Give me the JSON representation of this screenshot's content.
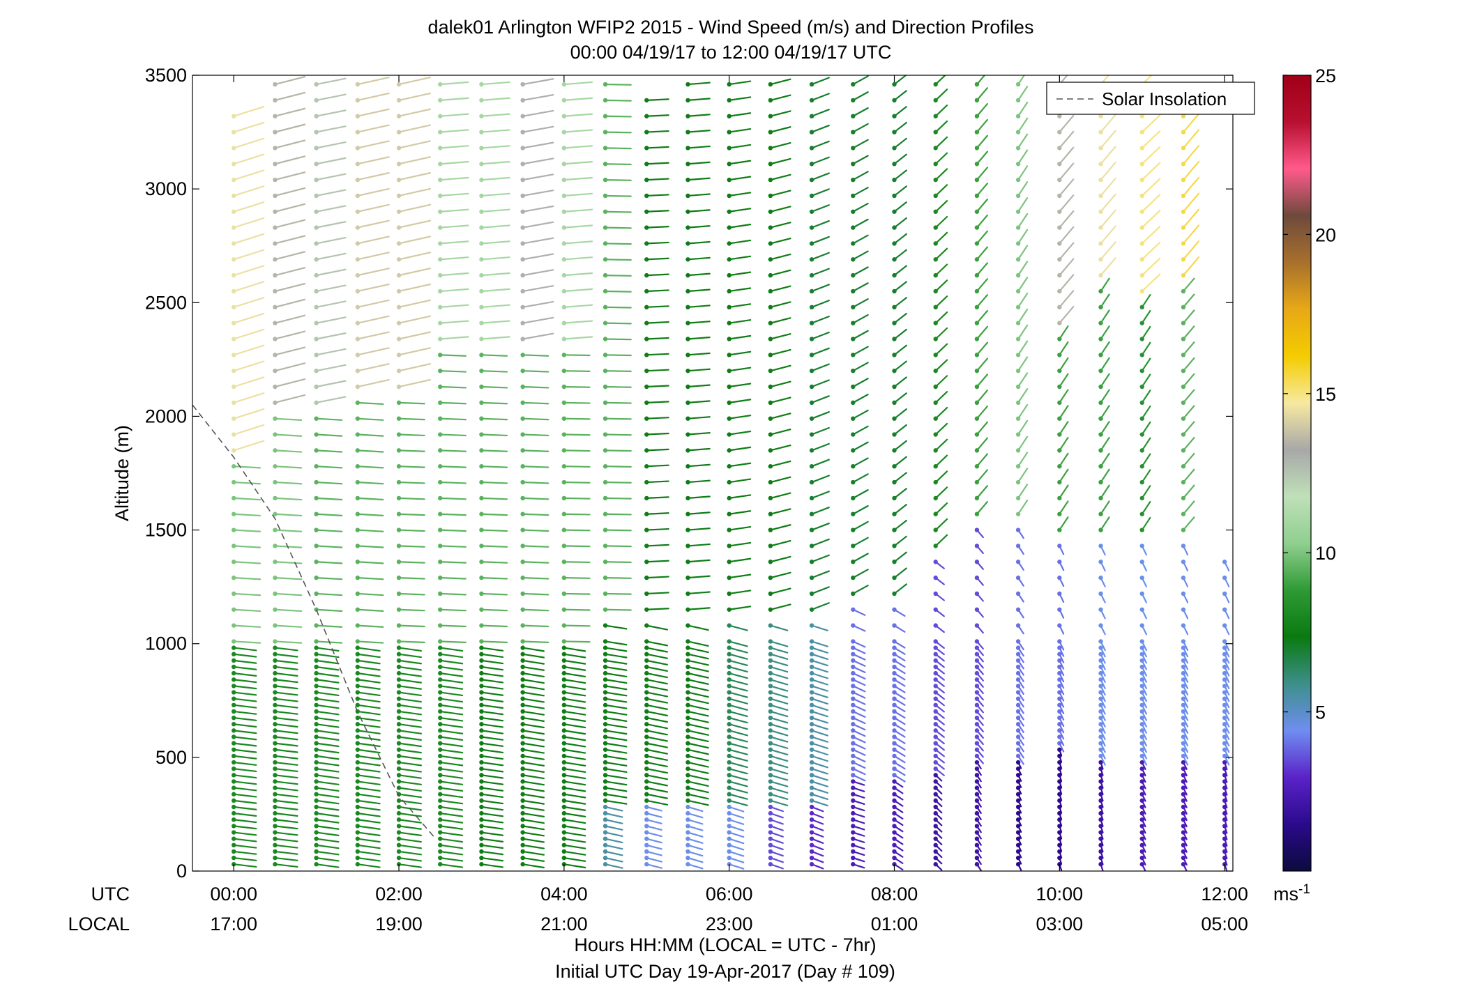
{
  "chart_data": {
    "type": "vector-profile",
    "title": "dalek01 Arlington WFIP2 2015 - Wind Speed (m/s) and Direction Profiles",
    "subtitle": "00:00 04/19/17 to 12:00 04/19/17  UTC",
    "ylabel": "Altitude (m)",
    "xlabel": "Hours HH:MM  (LOCAL = UTC - 7hr)",
    "xlabel2": "Initial UTC Day 19-Apr-2017 (Day # 109)",
    "utc_row_label": "UTC",
    "local_row_label": "LOCAL",
    "xlim": [
      -0.5,
      12.1
    ],
    "ylim": [
      0,
      3500
    ],
    "y_ticks": [
      0,
      500,
      1000,
      1500,
      2000,
      2500,
      3000,
      3500
    ],
    "y_tick_labels": [
      "0",
      "500",
      "1000",
      "1500",
      "2000",
      "2500",
      "3000",
      "3500"
    ],
    "x_ticks": [
      0,
      2,
      4,
      6,
      8,
      10,
      12
    ],
    "x_tick_labels_utc": [
      "00:00",
      "02:00",
      "04:00",
      "06:00",
      "08:00",
      "10:00",
      "12:00"
    ],
    "x_tick_labels_local": [
      "17:00",
      "19:00",
      "21:00",
      "23:00",
      "01:00",
      "03:00",
      "05:00"
    ],
    "legend": {
      "entries": [
        "Solar Insolation"
      ],
      "position": "top-right"
    },
    "colorbar": {
      "range": [
        0,
        25
      ],
      "ticks": [
        5,
        10,
        15,
        20,
        25
      ],
      "tick_labels": [
        "5",
        "10",
        "15",
        "20",
        "25"
      ],
      "unit_label": "ms",
      "unit_exponent": "-1",
      "colors": [
        "#0b0b3d",
        "#2b0a8c",
        "#5a22c8",
        "#6f8ef0",
        "#3d8f8a",
        "#0a7a10",
        "#2f9a35",
        "#8fcf8f",
        "#bfe0b8",
        "#a8a8a8",
        "#f7e9a0",
        "#f4cc00",
        "#e8a817",
        "#a8702c",
        "#6e4a3c",
        "#ff5a8c",
        "#b81030",
        "#a00018"
      ]
    },
    "profile_times_hours": [
      0,
      0.5,
      1,
      1.5,
      2,
      2.5,
      3,
      3.5,
      4,
      4.5,
      5,
      5.5,
      6,
      6.5,
      7,
      7.5,
      8,
      8.5,
      9,
      9.5,
      10,
      10.5,
      11,
      11.5,
      12
    ],
    "profiles": [
      {
        "t": 0,
        "top": 3320,
        "regimes": [
          {
            "z": [
              0,
              1000
            ],
            "speed": 8,
            "dir": 282
          },
          {
            "z": [
              1000,
              1800
            ],
            "speed": 10,
            "dir": 276
          },
          {
            "z": [
              1800,
              3320
            ],
            "speed": 14.5,
            "dir": 240
          }
        ]
      },
      {
        "t": 0.5,
        "top": 3460,
        "regimes": [
          {
            "z": [
              0,
              1000
            ],
            "speed": 8,
            "dir": 282
          },
          {
            "z": [
              1000,
              2000
            ],
            "speed": 10,
            "dir": 276
          },
          {
            "z": [
              2000,
              3460
            ],
            "speed": 13.5,
            "dir": 245
          }
        ]
      },
      {
        "t": 1,
        "top": 3470,
        "regimes": [
          {
            "z": [
              0,
              1000
            ],
            "speed": 8,
            "dir": 284
          },
          {
            "z": [
              1000,
              2050
            ],
            "speed": 9.5,
            "dir": 276
          },
          {
            "z": [
              2050,
              3470
            ],
            "speed": 12.5,
            "dir": 250
          }
        ]
      },
      {
        "t": 1.5,
        "top": 3470,
        "regimes": [
          {
            "z": [
              0,
              1000
            ],
            "speed": 8,
            "dir": 284
          },
          {
            "z": [
              1000,
              2100
            ],
            "speed": 9.5,
            "dir": 276
          },
          {
            "z": [
              2100,
              3470
            ],
            "speed": 14,
            "dir": 248
          }
        ]
      },
      {
        "t": 2,
        "top": 3470,
        "regimes": [
          {
            "z": [
              0,
              1000
            ],
            "speed": 8,
            "dir": 284
          },
          {
            "z": [
              1000,
              2100
            ],
            "speed": 9.5,
            "dir": 274
          },
          {
            "z": [
              2100,
              3470
            ],
            "speed": 14,
            "dir": 248
          }
        ]
      },
      {
        "t": 2.5,
        "top": 3470,
        "regimes": [
          {
            "z": [
              0,
              1000
            ],
            "speed": 8,
            "dir": 284
          },
          {
            "z": [
              1000,
              2300
            ],
            "speed": 9.5,
            "dir": 274
          },
          {
            "z": [
              2300,
              3470
            ],
            "speed": 11,
            "dir": 262
          }
        ]
      },
      {
        "t": 3,
        "top": 3470,
        "regimes": [
          {
            "z": [
              0,
              1000
            ],
            "speed": 7.5,
            "dir": 284
          },
          {
            "z": [
              1000,
              2300
            ],
            "speed": 9.5,
            "dir": 274
          },
          {
            "z": [
              2300,
              3470
            ],
            "speed": 11,
            "dir": 262
          }
        ]
      },
      {
        "t": 3.5,
        "top": 3470,
        "regimes": [
          {
            "z": [
              0,
              1000
            ],
            "speed": 7.5,
            "dir": 286
          },
          {
            "z": [
              1000,
              2300
            ],
            "speed": 9.5,
            "dir": 274
          },
          {
            "z": [
              2300,
              3470
            ],
            "speed": 13,
            "dir": 252
          }
        ]
      },
      {
        "t": 4,
        "top": 3470,
        "regimes": [
          {
            "z": [
              0,
              1000
            ],
            "speed": 7.5,
            "dir": 286
          },
          {
            "z": [
              1000,
              2300
            ],
            "speed": 9.5,
            "dir": 272
          },
          {
            "z": [
              2300,
              3470
            ],
            "speed": 11,
            "dir": 262
          }
        ]
      },
      {
        "t": 4.5,
        "top": 3470,
        "regimes": [
          {
            "z": [
              0,
              300
            ],
            "speed": 5.5,
            "dir": 292
          },
          {
            "z": [
              300,
              1100
            ],
            "speed": 7.5,
            "dir": 286
          },
          {
            "z": [
              1100,
              3470
            ],
            "speed": 9.5,
            "dir": 272
          }
        ]
      },
      {
        "t": 5,
        "top": 3450,
        "regimes": [
          {
            "z": [
              0,
              300
            ],
            "speed": 4.5,
            "dir": 295
          },
          {
            "z": [
              300,
              1100
            ],
            "speed": 7.5,
            "dir": 290
          },
          {
            "z": [
              1100,
              3450
            ],
            "speed": 7.5,
            "dir": 265
          }
        ]
      },
      {
        "t": 5.5,
        "top": 3470,
        "regimes": [
          {
            "z": [
              0,
              300
            ],
            "speed": 4.5,
            "dir": 298
          },
          {
            "z": [
              300,
              1100
            ],
            "speed": 7.5,
            "dir": 292
          },
          {
            "z": [
              1100,
              3470
            ],
            "speed": 7.5,
            "dir": 262
          }
        ]
      },
      {
        "t": 6,
        "top": 3470,
        "regimes": [
          {
            "z": [
              0,
              300
            ],
            "speed": 4.5,
            "dir": 300
          },
          {
            "z": [
              300,
              1100
            ],
            "speed": 6.5,
            "dir": 296
          },
          {
            "z": [
              1100,
              3470
            ],
            "speed": 7.5,
            "dir": 255
          }
        ]
      },
      {
        "t": 6.5,
        "top": 3470,
        "regimes": [
          {
            "z": [
              0,
              300
            ],
            "speed": 3.5,
            "dir": 302
          },
          {
            "z": [
              300,
              1100
            ],
            "speed": 6,
            "dir": 298
          },
          {
            "z": [
              1100,
              3470
            ],
            "speed": 7.5,
            "dir": 245
          }
        ]
      },
      {
        "t": 7,
        "top": 3480,
        "regimes": [
          {
            "z": [
              0,
              300
            ],
            "speed": 3,
            "dir": 305
          },
          {
            "z": [
              300,
              1100
            ],
            "speed": 5.5,
            "dir": 300
          },
          {
            "z": [
              1100,
              3480
            ],
            "speed": 7,
            "dir": 235
          }
        ]
      },
      {
        "t": 7.5,
        "top": 3480,
        "regimes": [
          {
            "z": [
              0,
              400
            ],
            "speed": 2.5,
            "dir": 300
          },
          {
            "z": [
              400,
              1200
            ],
            "speed": 4,
            "dir": 310
          },
          {
            "z": [
              1200,
              3480
            ],
            "speed": 7,
            "dir": 225
          }
        ]
      },
      {
        "t": 8,
        "top": 3480,
        "regimes": [
          {
            "z": [
              0,
              400
            ],
            "speed": 2.5,
            "dir": 320
          },
          {
            "z": [
              400,
              1200
            ],
            "speed": 4,
            "dir": 318
          },
          {
            "z": [
              1200,
              3480
            ],
            "speed": 7,
            "dir": 215
          }
        ]
      },
      {
        "t": 8.5,
        "top": 3480,
        "regimes": [
          {
            "z": [
              0,
              450
            ],
            "speed": 2,
            "dir": 330
          },
          {
            "z": [
              450,
              1400
            ],
            "speed": 3.5,
            "dir": 325
          },
          {
            "z": [
              1400,
              3480
            ],
            "speed": 8,
            "dir": 210
          }
        ]
      },
      {
        "t": 9,
        "top": 3480,
        "regimes": [
          {
            "z": [
              0,
              500
            ],
            "speed": 2,
            "dir": 340
          },
          {
            "z": [
              500,
              1550
            ],
            "speed": 3.5,
            "dir": 335
          },
          {
            "z": [
              1550,
              3480
            ],
            "speed": 9,
            "dir": 205
          }
        ]
      },
      {
        "t": 9.5,
        "top": 3480,
        "regimes": [
          {
            "z": [
              0,
              500
            ],
            "speed": 1.5,
            "dir": 345
          },
          {
            "z": [
              500,
              1550
            ],
            "speed": 4,
            "dir": 340
          },
          {
            "z": [
              1550,
              3480
            ],
            "speed": 10,
            "dir": 200
          }
        ]
      },
      {
        "t": 10,
        "top": 3470,
        "regimes": [
          {
            "z": [
              0,
              550
            ],
            "speed": 1.5,
            "dir": 350
          },
          {
            "z": [
              550,
              1500
            ],
            "speed": 4,
            "dir": 345
          },
          {
            "z": [
              1500,
              2400
            ],
            "speed": 9,
            "dir": 200
          },
          {
            "z": [
              2400,
              3470
            ],
            "speed": 13.5,
            "dir": 205
          }
        ]
      },
      {
        "t": 10.5,
        "top": 3460,
        "regimes": [
          {
            "z": [
              0,
              500
            ],
            "speed": 2,
            "dir": 350
          },
          {
            "z": [
              500,
              1500
            ],
            "speed": 4.5,
            "dir": 345
          },
          {
            "z": [
              1500,
              2600
            ],
            "speed": 9,
            "dir": 200
          },
          {
            "z": [
              2600,
              3460
            ],
            "speed": 14.5,
            "dir": 205
          }
        ]
      },
      {
        "t": 11,
        "top": 3460,
        "regimes": [
          {
            "z": [
              0,
              500
            ],
            "speed": 2.5,
            "dir": 345
          },
          {
            "z": [
              500,
              1500
            ],
            "speed": 4.5,
            "dir": 345
          },
          {
            "z": [
              1500,
              2500
            ],
            "speed": 8.5,
            "dir": 200
          },
          {
            "z": [
              2500,
              3460
            ],
            "speed": 15,
            "dir": 210
          }
        ]
      },
      {
        "t": 11.5,
        "top": 3360,
        "regimes": [
          {
            "z": [
              0,
              500
            ],
            "speed": 2.5,
            "dir": 345
          },
          {
            "z": [
              500,
              1500
            ],
            "speed": 4.5,
            "dir": 345
          },
          {
            "z": [
              1500,
              2600
            ],
            "speed": 9.5,
            "dir": 205
          },
          {
            "z": [
              2600,
              3360
            ],
            "speed": 15.5,
            "dir": 205
          }
        ]
      },
      {
        "t": 12,
        "top": 1400,
        "regimes": [
          {
            "z": [
              0,
              500
            ],
            "speed": 2.5,
            "dir": 350
          },
          {
            "z": [
              500,
              1400
            ],
            "speed": 4.5,
            "dir": 345
          }
        ]
      }
    ],
    "solar_insolation_line": {
      "name": "Solar Insolation",
      "points": [
        [
          -0.5,
          2050
        ],
        [
          0,
          1820
        ],
        [
          0.5,
          1550
        ],
        [
          1,
          1150
        ],
        [
          1.5,
          700
        ],
        [
          2,
          330
        ],
        [
          2.45,
          140
        ]
      ]
    }
  }
}
